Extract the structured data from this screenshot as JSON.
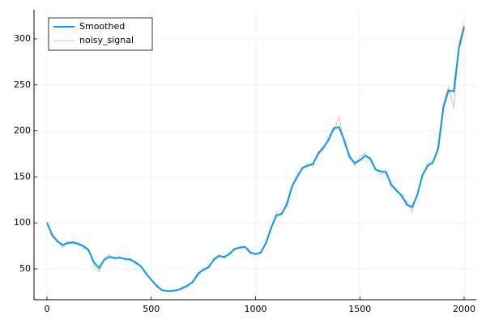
{
  "chart_data": {
    "type": "line",
    "x": [
      0,
      25,
      50,
      75,
      100,
      125,
      150,
      175,
      200,
      225,
      250,
      275,
      300,
      325,
      350,
      375,
      400,
      425,
      450,
      475,
      500,
      525,
      550,
      575,
      600,
      625,
      650,
      675,
      700,
      725,
      750,
      775,
      800,
      825,
      850,
      875,
      900,
      925,
      950,
      975,
      1000,
      1025,
      1050,
      1075,
      1100,
      1125,
      1150,
      1175,
      1200,
      1225,
      1250,
      1275,
      1300,
      1325,
      1350,
      1375,
      1400,
      1425,
      1450,
      1475,
      1500,
      1525,
      1550,
      1575,
      1600,
      1625,
      1650,
      1675,
      1700,
      1725,
      1750,
      1775,
      1800,
      1825,
      1850,
      1875,
      1900,
      1925,
      1950,
      1975,
      2000
    ],
    "series": [
      {
        "name": "Smoothed",
        "color": "#009af9",
        "width": 2,
        "values": [
          100,
          87,
          80,
          76,
          78,
          79,
          77,
          75,
          70,
          57,
          51,
          60,
          63,
          62,
          62,
          61,
          60,
          57,
          53,
          45,
          38,
          32,
          27,
          26,
          26,
          27,
          29,
          32,
          36,
          45,
          49,
          52,
          60,
          64,
          63,
          66,
          72,
          73,
          74,
          68,
          66,
          68,
          78,
          95,
          108,
          110,
          120,
          140,
          150,
          160,
          162,
          164,
          175,
          182,
          190,
          203,
          204,
          190,
          172,
          165,
          168,
          173,
          170,
          158,
          156,
          155,
          142,
          135,
          130,
          120,
          117,
          130,
          152,
          162,
          166,
          180,
          225,
          244,
          243,
          290,
          313
        ]
      },
      {
        "name": "noisy_signal",
        "color": "#e26f46",
        "width": 1,
        "values": [
          102,
          84,
          82,
          73,
          80,
          77,
          79,
          72,
          73,
          54,
          47,
          62,
          65,
          60,
          64,
          59,
          62,
          55,
          54,
          44,
          39,
          30,
          28,
          25,
          27,
          26,
          31,
          30,
          38,
          43,
          51,
          50,
          62,
          66,
          61,
          68,
          70,
          75,
          73,
          66,
          67,
          66,
          80,
          92,
          112,
          107,
          124,
          137,
          155,
          157,
          165,
          161,
          178,
          179,
          195,
          200,
          215,
          185,
          175,
          162,
          172,
          176,
          166,
          160,
          152,
          158,
          138,
          138,
          127,
          124,
          112,
          132,
          150,
          165,
          164,
          185,
          230,
          248,
          225,
          295,
          318
        ]
      }
    ],
    "xlim": [
      -62,
      2058
    ],
    "xticks": [
      0,
      500,
      1000,
      1500,
      2000
    ],
    "ylim": [
      16.5,
      331.7
    ],
    "yticks": [
      50,
      100,
      150,
      200,
      250,
      300
    ],
    "grid": true,
    "legend": "top-left"
  }
}
